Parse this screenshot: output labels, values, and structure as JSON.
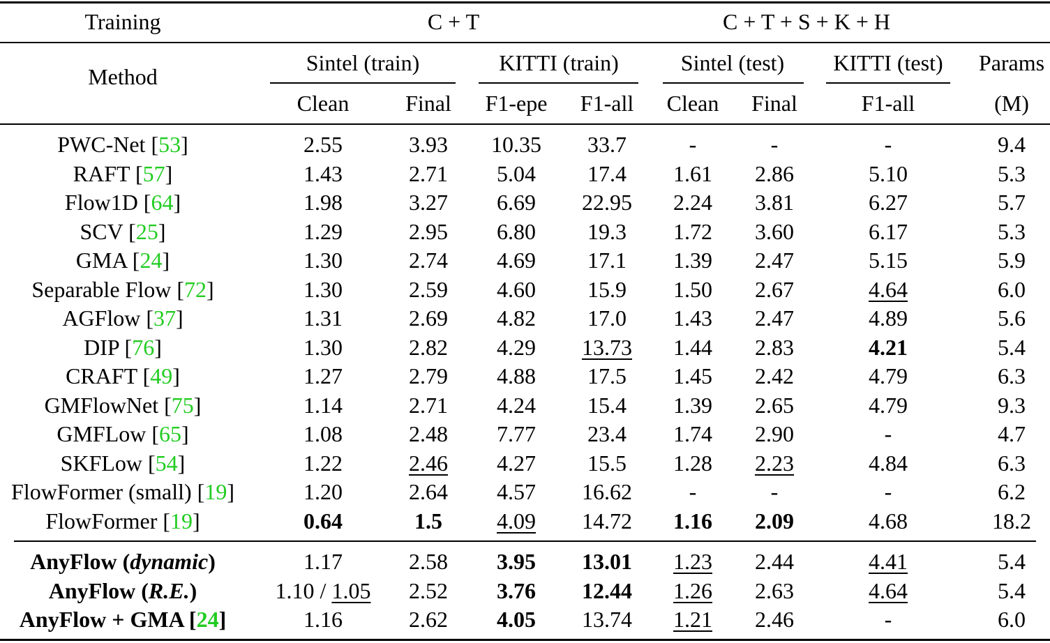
{
  "header": {
    "training_label": "Training",
    "group_ct": "C + T",
    "group_ctskh": "C + T + S + K + H",
    "method_label": "Method",
    "subgroups": [
      "Sintel (train)",
      "KITTI (train)",
      "Sintel (test)",
      "KITTI (test)"
    ],
    "params_label": "Params",
    "params_unit": "(M)",
    "columns": [
      "Clean",
      "Final",
      "F1-epe",
      "F1-all",
      "Clean",
      "Final",
      "F1-all"
    ]
  },
  "rows": [
    {
      "name": "PWC-Net ",
      "ref": "53",
      "vals": [
        "2.55",
        "3.93",
        "10.35",
        "33.7",
        "-",
        "-",
        "-",
        "9.4"
      ]
    },
    {
      "name": "RAFT ",
      "ref": "57",
      "vals": [
        "1.43",
        "2.71",
        "5.04",
        "17.4",
        "1.61",
        "2.86",
        "5.10",
        "5.3"
      ]
    },
    {
      "name": "Flow1D ",
      "ref": "64",
      "vals": [
        "1.98",
        "3.27",
        "6.69",
        "22.95",
        "2.24",
        "3.81",
        "6.27",
        "5.7"
      ]
    },
    {
      "name": "SCV ",
      "ref": "25",
      "vals": [
        "1.29",
        "2.95",
        "6.80",
        "19.3",
        "1.72",
        "3.60",
        "6.17",
        "5.3"
      ]
    },
    {
      "name": "GMA ",
      "ref": "24",
      "vals": [
        "1.30",
        "2.74",
        "4.69",
        "17.1",
        "1.39",
        "2.47",
        "5.15",
        "5.9"
      ]
    },
    {
      "name": "Separable Flow ",
      "ref": "72",
      "vals": [
        "1.30",
        "2.59",
        "4.60",
        "15.9",
        "1.50",
        "2.67",
        "4.64",
        "6.0"
      ],
      "u": [
        6
      ]
    },
    {
      "name": "AGFlow ",
      "ref": "37",
      "vals": [
        "1.31",
        "2.69",
        "4.82",
        "17.0",
        "1.43",
        "2.47",
        "4.89",
        "5.6"
      ]
    },
    {
      "name": "DIP ",
      "ref": "76",
      "vals": [
        "1.30",
        "2.82",
        "4.29",
        "13.73",
        "1.44",
        "2.83",
        "4.21",
        "5.4"
      ],
      "u": [
        3
      ],
      "b": [
        6
      ]
    },
    {
      "name": "CRAFT ",
      "ref": "49",
      "vals": [
        "1.27",
        "2.79",
        "4.88",
        "17.5",
        "1.45",
        "2.42",
        "4.79",
        "6.3"
      ]
    },
    {
      "name": "GMFlowNet ",
      "ref": "75",
      "vals": [
        "1.14",
        "2.71",
        "4.24",
        "15.4",
        "1.39",
        "2.65",
        "4.79",
        "9.3"
      ]
    },
    {
      "name": "GMFLow ",
      "ref": "65",
      "vals": [
        "1.08",
        "2.48",
        "7.77",
        "23.4",
        "1.74",
        "2.90",
        "-",
        "4.7"
      ]
    },
    {
      "name": "SKFLow ",
      "ref": "54",
      "vals": [
        "1.22",
        "2.46",
        "4.27",
        "15.5",
        "1.28",
        "2.23",
        "4.84",
        "6.3"
      ],
      "u": [
        1,
        5
      ]
    },
    {
      "name": "FlowFormer (small) ",
      "ref": "19",
      "vals": [
        "1.20",
        "2.64",
        "4.57",
        "16.62",
        "-",
        "-",
        "-",
        "6.2"
      ]
    },
    {
      "name": "FlowFormer ",
      "ref": "19",
      "vals": [
        "0.64",
        "1.5",
        "4.09",
        "14.72",
        "1.16",
        "2.09",
        "4.68",
        "18.2"
      ],
      "b": [
        0,
        1,
        4,
        5
      ],
      "u": [
        2
      ]
    }
  ],
  "ours": [
    {
      "name_bold": "AnyFlow (",
      "name_it": "dynamic",
      "name_end": ")",
      "vals": [
        "1.17",
        "2.58",
        "3.95",
        "13.01",
        "1.23",
        "2.44",
        "4.41",
        "5.4"
      ],
      "b": [
        2,
        3
      ],
      "u": [
        4,
        6
      ]
    },
    {
      "name_bold": "AnyFlow (",
      "name_it": "R.E.",
      "name_end": ")",
      "pre0": "1.10 / ",
      "vals": [
        "1.05",
        "2.52",
        "3.76",
        "12.44",
        "1.26",
        "2.63",
        "4.64",
        "5.4"
      ],
      "b": [
        2,
        3
      ],
      "u": [
        0,
        4,
        6
      ]
    },
    {
      "name_bold": "AnyFlow + GMA [",
      "ref": "24",
      "name_end": "]",
      "vals": [
        "1.16",
        "2.62",
        "4.05",
        "13.74",
        "1.21",
        "2.46",
        "-",
        "6.0"
      ],
      "b": [
        2
      ],
      "u": [
        4
      ]
    }
  ]
}
